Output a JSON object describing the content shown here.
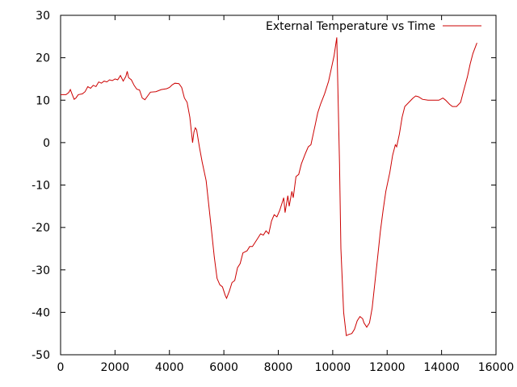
{
  "chart_data": {
    "type": "line",
    "title": "",
    "xlabel": "",
    "ylabel": "",
    "xlim": [
      0,
      16000
    ],
    "ylim": [
      -50,
      30
    ],
    "x_ticks": [
      0,
      2000,
      4000,
      6000,
      8000,
      10000,
      12000,
      14000,
      16000
    ],
    "y_ticks": [
      -50,
      -40,
      -30,
      -20,
      -10,
      0,
      10,
      20,
      30
    ],
    "grid": false,
    "legend_position": "top-right",
    "series": [
      {
        "name": "External Temperature vs Time",
        "color": "#cc0000",
        "points": [
          [
            0,
            11.3
          ],
          [
            200,
            11.3
          ],
          [
            300,
            11.8
          ],
          [
            360,
            12.5
          ],
          [
            420,
            11.5
          ],
          [
            500,
            10.2
          ],
          [
            560,
            10.5
          ],
          [
            650,
            11.3
          ],
          [
            800,
            11.5
          ],
          [
            900,
            12.0
          ],
          [
            1000,
            13.2
          ],
          [
            1100,
            12.8
          ],
          [
            1200,
            13.5
          ],
          [
            1300,
            13.2
          ],
          [
            1400,
            14.3
          ],
          [
            1500,
            14.0
          ],
          [
            1600,
            14.5
          ],
          [
            1700,
            14.3
          ],
          [
            1800,
            14.8
          ],
          [
            1900,
            14.6
          ],
          [
            2000,
            15.0
          ],
          [
            2100,
            14.8
          ],
          [
            2200,
            15.8
          ],
          [
            2300,
            14.5
          ],
          [
            2400,
            15.6
          ],
          [
            2450,
            16.8
          ],
          [
            2500,
            15.3
          ],
          [
            2600,
            14.8
          ],
          [
            2700,
            13.5
          ],
          [
            2800,
            12.6
          ],
          [
            2900,
            12.4
          ],
          [
            3000,
            10.5
          ],
          [
            3100,
            10.1
          ],
          [
            3200,
            11.0
          ],
          [
            3300,
            11.9
          ],
          [
            3500,
            12.0
          ],
          [
            3700,
            12.5
          ],
          [
            3900,
            12.7
          ],
          [
            4000,
            13.0
          ],
          [
            4100,
            13.6
          ],
          [
            4200,
            14.0
          ],
          [
            4350,
            13.9
          ],
          [
            4450,
            13.0
          ],
          [
            4550,
            10.5
          ],
          [
            4650,
            9.5
          ],
          [
            4750,
            6.0
          ],
          [
            4850,
            0.0
          ],
          [
            4900,
            2.5
          ],
          [
            4950,
            3.5
          ],
          [
            5000,
            3.0
          ],
          [
            5100,
            -1.0
          ],
          [
            5200,
            -4.5
          ],
          [
            5350,
            -9.0
          ],
          [
            5450,
            -15.0
          ],
          [
            5550,
            -21.0
          ],
          [
            5650,
            -27.0
          ],
          [
            5750,
            -32.0
          ],
          [
            5850,
            -33.5
          ],
          [
            5950,
            -34.0
          ],
          [
            6050,
            -36.0
          ],
          [
            6100,
            -36.7
          ],
          [
            6200,
            -35.0
          ],
          [
            6300,
            -33.0
          ],
          [
            6400,
            -32.5
          ],
          [
            6500,
            -29.5
          ],
          [
            6600,
            -28.5
          ],
          [
            6700,
            -26.0
          ],
          [
            6850,
            -25.5
          ],
          [
            6950,
            -24.5
          ],
          [
            7050,
            -24.5
          ],
          [
            7200,
            -23.0
          ],
          [
            7350,
            -21.5
          ],
          [
            7450,
            -21.8
          ],
          [
            7550,
            -20.8
          ],
          [
            7650,
            -21.5
          ],
          [
            7750,
            -18.5
          ],
          [
            7850,
            -17.0
          ],
          [
            7950,
            -17.5
          ],
          [
            8050,
            -16.0
          ],
          [
            8150,
            -14.0
          ],
          [
            8200,
            -13.0
          ],
          [
            8250,
            -16.5
          ],
          [
            8350,
            -12.5
          ],
          [
            8400,
            -15.0
          ],
          [
            8500,
            -11.5
          ],
          [
            8550,
            -13.0
          ],
          [
            8650,
            -8.0
          ],
          [
            8750,
            -7.5
          ],
          [
            8850,
            -5.0
          ],
          [
            9000,
            -2.5
          ],
          [
            9100,
            -1.0
          ],
          [
            9200,
            -0.5
          ],
          [
            9300,
            2.5
          ],
          [
            9350,
            4.0
          ],
          [
            9450,
            7.0
          ],
          [
            9550,
            9.0
          ],
          [
            9700,
            11.5
          ],
          [
            9850,
            14.5
          ],
          [
            9950,
            17.5
          ],
          [
            10050,
            20.5
          ],
          [
            10150,
            24.8
          ],
          [
            10250,
            -5.0
          ],
          [
            10300,
            -25.0
          ],
          [
            10400,
            -40.0
          ],
          [
            10500,
            -45.5
          ],
          [
            10600,
            -45.2
          ],
          [
            10700,
            -45.0
          ],
          [
            10800,
            -44.0
          ],
          [
            10900,
            -42.0
          ],
          [
            11000,
            -41.0
          ],
          [
            11100,
            -41.5
          ],
          [
            11150,
            -42.5
          ],
          [
            11250,
            -43.5
          ],
          [
            11350,
            -42.5
          ],
          [
            11450,
            -39.0
          ],
          [
            11550,
            -33.0
          ],
          [
            11650,
            -27.0
          ],
          [
            11750,
            -21.0
          ],
          [
            11850,
            -16.0
          ],
          [
            11950,
            -11.5
          ],
          [
            12100,
            -7.0
          ],
          [
            12200,
            -3.0
          ],
          [
            12300,
            -0.5
          ],
          [
            12350,
            -1.0
          ],
          [
            12450,
            2.0
          ],
          [
            12550,
            6.0
          ],
          [
            12650,
            8.5
          ],
          [
            12800,
            9.5
          ],
          [
            12950,
            10.5
          ],
          [
            13050,
            11.0
          ],
          [
            13150,
            10.8
          ],
          [
            13300,
            10.2
          ],
          [
            13500,
            10.0
          ],
          [
            13700,
            10.0
          ],
          [
            13900,
            10.0
          ],
          [
            14050,
            10.5
          ],
          [
            14150,
            10.0
          ],
          [
            14300,
            9.0
          ],
          [
            14400,
            8.5
          ],
          [
            14550,
            8.5
          ],
          [
            14700,
            9.5
          ],
          [
            14800,
            12.0
          ],
          [
            14950,
            15.5
          ],
          [
            15050,
            18.5
          ],
          [
            15150,
            21.0
          ],
          [
            15300,
            23.5
          ]
        ]
      }
    ]
  }
}
